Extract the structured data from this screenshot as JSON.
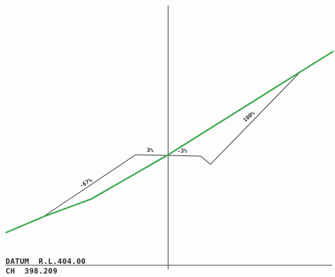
{
  "section": {
    "datum_label": "DATUM  R.L.404.00",
    "chainage_label": "CH  398.209",
    "grades": {
      "left_batter": "-67%",
      "left_formation": "3%",
      "right_formation": "-3%",
      "right_batter": "100%"
    }
  },
  "colors": {
    "natural_surface": "#3aa84a",
    "design_profile": "#333333",
    "centreline": "#333333",
    "background": "#ffffff"
  }
}
